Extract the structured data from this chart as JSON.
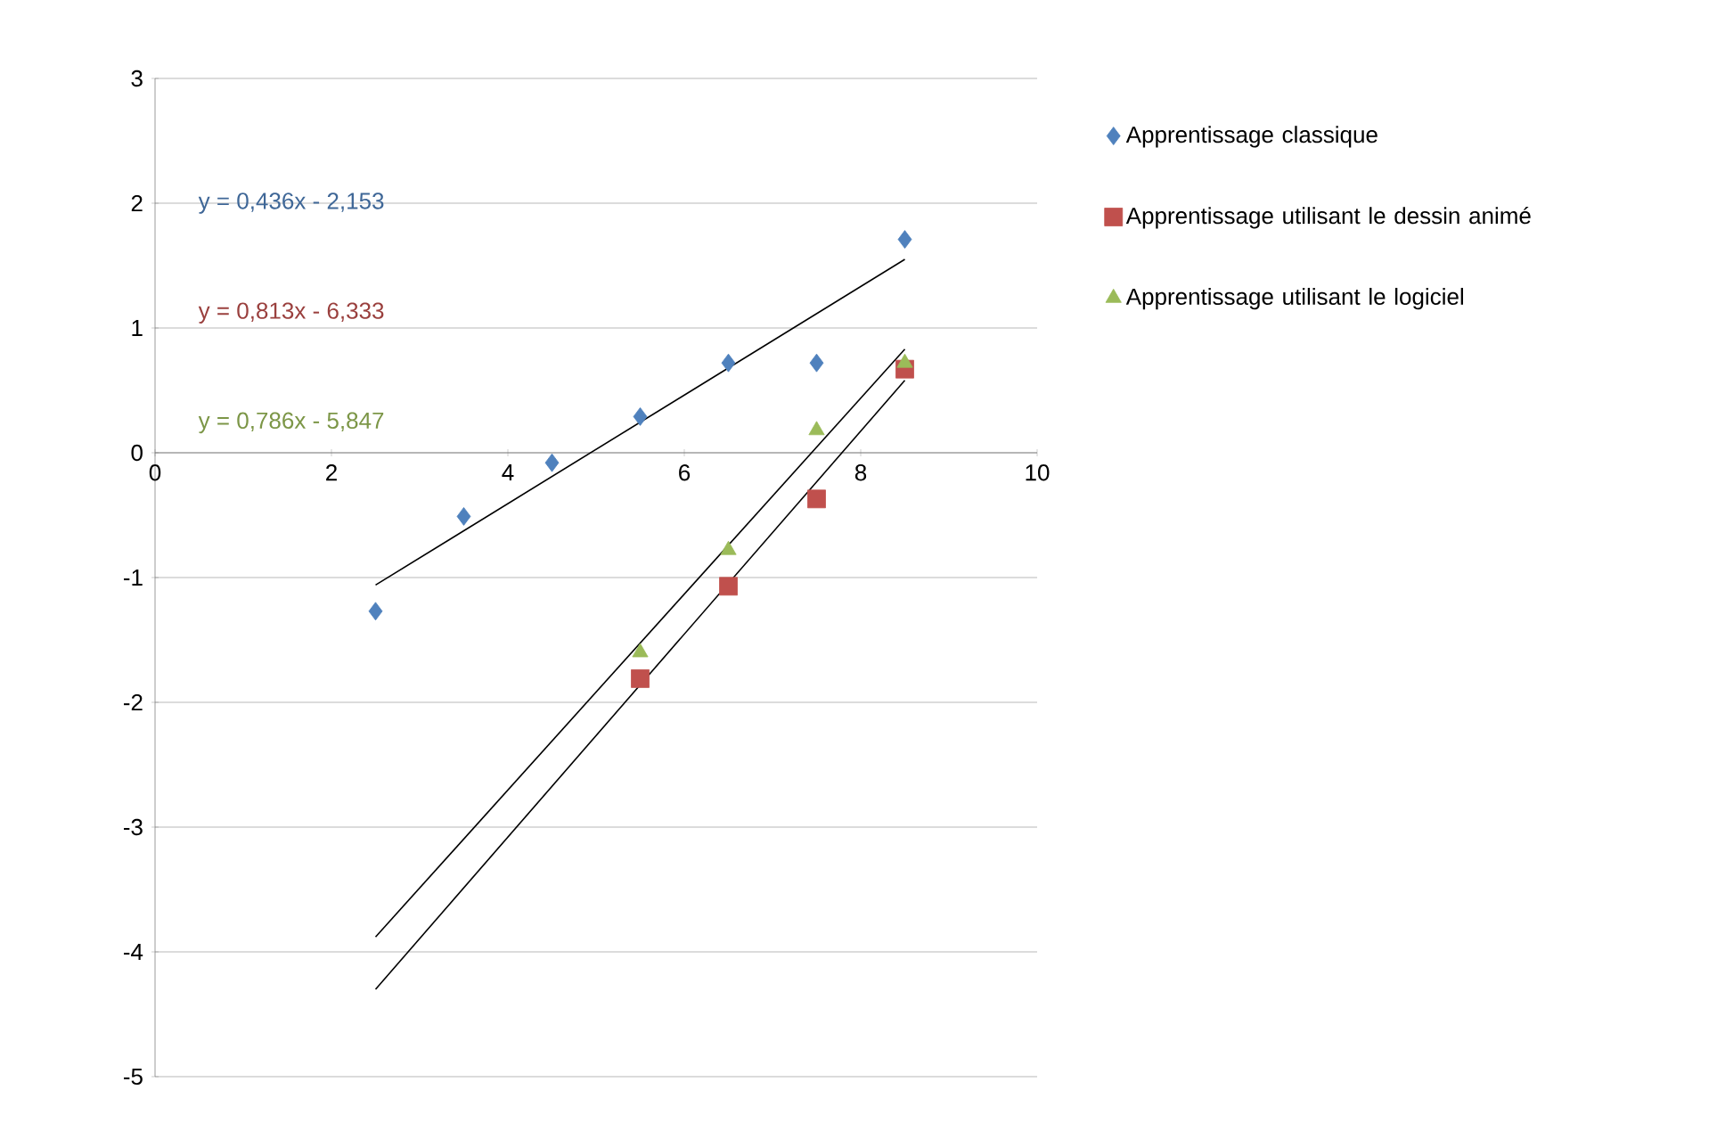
{
  "chart_data": {
    "type": "scatter",
    "xlim": [
      0,
      10
    ],
    "xticks": [
      0,
      2,
      4,
      6,
      8,
      10
    ],
    "ylim": [
      -5,
      3
    ],
    "yticks": [
      -5,
      -4,
      -3,
      -2,
      -1,
      0,
      1,
      2,
      3
    ],
    "grid": "y",
    "legend": "right",
    "annotations": [
      "y = 0,436x - 2,153",
      "y = 0,813x - 6,333",
      "y = 0,786x - 5,847"
    ],
    "series": [
      {
        "name": "Apprentissage classique",
        "color": "#4f81bd",
        "marker": "diamond",
        "x": [
          2.5,
          3.5,
          4.5,
          5.5,
          6.5,
          7.5,
          8.5
        ],
        "values": [
          -1.27,
          -0.51,
          -0.08,
          0.29,
          0.72,
          0.72,
          1.71
        ]
      },
      {
        "name": "Apprentissage utilisant le dessin animé",
        "color": "#c0504d",
        "marker": "square",
        "x": [
          5.5,
          6.5,
          7.5,
          8.5
        ],
        "values": [
          -1.81,
          -1.07,
          -0.37,
          0.67
        ]
      },
      {
        "name": "Apprentissage utilisant le logiciel",
        "color": "#9bbb59",
        "marker": "triangle",
        "x": [
          5.5,
          6.5,
          7.5,
          8.5
        ],
        "values": [
          -1.6,
          -0.78,
          0.18,
          0.72
        ]
      },
      {
        "type": "line",
        "color": "#000000",
        "marker": "none",
        "line_style": "solid",
        "x": [
          2.5,
          8.5
        ],
        "values": [
          -1.06,
          1.55
        ]
      },
      {
        "type": "line",
        "color": "#000000",
        "marker": "none",
        "line_style": "solid",
        "x": [
          2.5,
          8.5
        ],
        "values": [
          -4.3,
          0.58
        ]
      },
      {
        "type": "line",
        "color": "#000000",
        "marker": "none",
        "line_style": "solid",
        "x": [
          2.5,
          8.5
        ],
        "values": [
          -3.88,
          0.83
        ]
      }
    ]
  }
}
